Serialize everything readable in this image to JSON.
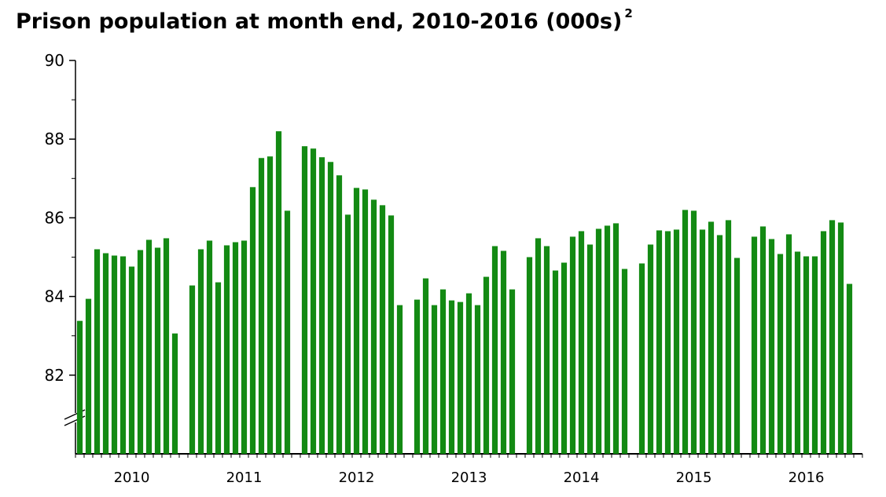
{
  "chart_data": {
    "type": "bar",
    "title": "Prison population at month end, 2010-2016 (000s)",
    "title_note": "2",
    "color": "#138a13",
    "ylim": [
      80,
      90
    ],
    "yticks": [
      82,
      84,
      86,
      88,
      90
    ],
    "groups": [
      {
        "label": "2010",
        "values": [
          83.38,
          83.94,
          85.2,
          85.1,
          85.04,
          85.02,
          84.76,
          85.18,
          85.44,
          85.24,
          85.48,
          83.06
        ]
      },
      {
        "label": "2011",
        "values": [
          84.28,
          85.2,
          85.42,
          84.36,
          85.3,
          85.38,
          85.42,
          86.78,
          87.52,
          87.56,
          88.2,
          86.18
        ]
      },
      {
        "label": "2012",
        "values": [
          87.82,
          87.76,
          87.54,
          87.42,
          87.08,
          86.08,
          86.76,
          86.72,
          86.46,
          86.32,
          86.06,
          83.78
        ]
      },
      {
        "label": "2013",
        "values": [
          83.92,
          84.46,
          83.78,
          84.18,
          83.9,
          83.86,
          84.08,
          83.78,
          84.5,
          85.28,
          85.16,
          84.18
        ]
      },
      {
        "label": "2014",
        "values": [
          85.0,
          85.48,
          85.28,
          84.66,
          84.86,
          85.52,
          85.66,
          85.32,
          85.72,
          85.8,
          85.86,
          84.7
        ]
      },
      {
        "label": "2015",
        "values": [
          84.84,
          85.32,
          85.68,
          85.66,
          85.7,
          86.2,
          86.18,
          85.7,
          85.9,
          85.56,
          85.94,
          84.98
        ]
      },
      {
        "label": "2016",
        "values": [
          85.52,
          85.78,
          85.46,
          85.08,
          85.58,
          85.14,
          85.02,
          85.02,
          85.66,
          85.94,
          85.88,
          84.32
        ]
      }
    ]
  }
}
